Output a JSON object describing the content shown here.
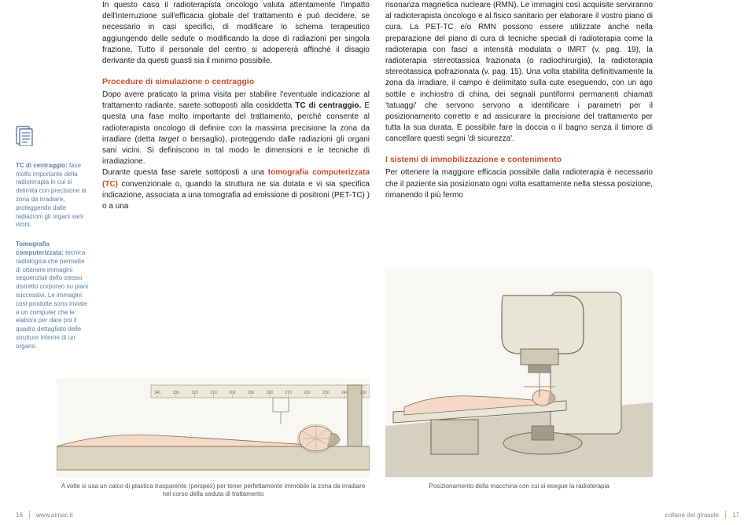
{
  "sidebar": {
    "term1_title": "TC di centraggio:",
    "term1_body": " fase molto importante della radioterapia in cui si delimita con precisione la zona da irradiare, proteggendo dalle radiazioni gli organi sani vicini.",
    "term2_title": "Tomografia computerizzata:",
    "term2_body": " tecnica radiologica che permette di ottenere immagini sequenziali dello stesso distretto corporeo su piani successivi. Le immagini così prodotte sono inviate a un computer che le elabora per dare poi il quadro dettagliato delle strutture interne di un organo."
  },
  "left": {
    "intro": "In questo caso il radioterapista oncologo valuta attentamente l'impatto dell'interruzione sull'efficacia globale del trattamento e può decidere, se necessario in casi specifici, di modificare lo schema terapeutico aggiungendo delle sedute o modificando la dose di radiazioni per singola frazione. Tutto il personale del centro si adopererà affinché il disagio derivante da questi guasti sia il minimo possibile.",
    "subhead": "Procedure di simulazione o centraggio",
    "p1a": "Dopo avere praticato la prima visita per stabilire l'eventuale indicazione al trattamento radiante, sarete sottoposti alla cosiddetta ",
    "p1_bold": "TC di centraggio.",
    "p1b": " È questa una fase molto importante del trattamento, perché consente al radioterapista oncologo di definire con la massima precisione la zona da irradiare (detta ",
    "p1_italic": "target",
    "p1c": " o bersaglio), proteggendo dalle radiazioni gli organi sani vicini. Si definiscono in tal modo le dimensioni e le tecniche di irradiazione.",
    "p2a": "Durante questa fase sarete sottoposti a una ",
    "p2_bold": "tomografia computerizzata (TC)",
    "p2b": " convenzionale o, quando la struttura ne sia dotata e vi sia specifica indicazione, associata a una tomografia ad emissione di positroni (PET-TC) ) o a una"
  },
  "right": {
    "cont": "risonanza magnetica nucleare (RMN). Le immagini così acquisite serviranno al radioterapista oncologo e al fisico sanitario per elaborare il vostro piano di cura. La PET-TC e/o RMN possono essere utilizzate anche nella preparazione del piano di cura di tecniche speciali di radioterapia come la radioterapia con fasci a intensità modulata o IMRT (v. pag. 19), la radioterapia stereotassica frazionata (o radiochirurgia), la radioterapia stereotassica ipofrazionata (v. pag. 15). Una volta stabilita definitivamente la zona da irradiare, il campo è delimitato sulla cute eseguendo, con un ago sottile e inchiostro di china, dei segnali puntiformi permanenti chiamati 'tatuaggi' che servono servono a identificare i parametri per il posizionamento corretto e ad assicurare la precisione del trattamento per tutta la sua durata. È possibile fare la doccia o il bagno senza il timore di cancellare questi segni 'di sicurezza'.",
    "subhead2": "I sistemi di immobilizzazione e contenimento",
    "p3": "Per ottenere la maggiore efficacia possibile dalla radioterapia è necessario che il paziente sia posizionato ogni volta esattamente nella stessa posizione, rimanendo il più fermo"
  },
  "illustrations": {
    "ruler_labels": [
      "340",
      "330",
      "320",
      "310",
      "300",
      "290",
      "280",
      "270",
      "260",
      "250",
      "240",
      "230"
    ],
    "ruler_font_size": 5,
    "skin_color": "#f3d9c6",
    "hair_color": "#c1b39b",
    "table_color": "#dcd4c0",
    "machine_light": "#e8e4d6",
    "machine_mid": "#cfc9b5",
    "machine_dark": "#a29c88",
    "floor_color": "#d6d0c0",
    "outline": "#766b54"
  },
  "captions": {
    "left": "A volte si usa un calco di plastica trasparente (perspex) per tener perfettamente immobile la zona da irradiare nel corso della seduta di trattamento",
    "right": "Posizionamento della macchina con cui si esegue la radioterapia"
  },
  "footer": {
    "left_num": "16",
    "left_site": "www.aimac.it",
    "right_series": "collana del girasole",
    "right_num": "17"
  },
  "colors": {
    "accent_orange": "#c94f2e",
    "sidebar_blue": "#5a7fa6",
    "gold_rule": "#cbb88a",
    "text": "#222222",
    "muted": "#888888",
    "illu_bg": "#f9f7f3"
  }
}
